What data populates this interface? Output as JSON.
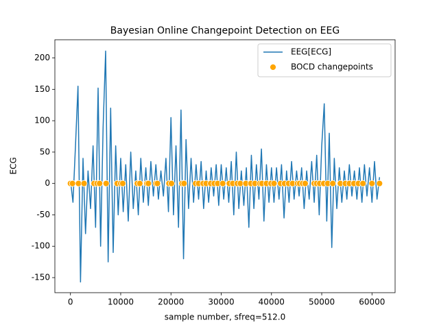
{
  "chart_data": {
    "type": "line",
    "title": "Bayesian Online Changepoint Detection on EEG",
    "xlabel": "sample number, sfreq=512.0",
    "ylabel": "ECG",
    "xlim": [
      -3100,
      64600
    ],
    "ylim": [
      -174,
      229
    ],
    "xticks": [
      0,
      10000,
      20000,
      30000,
      40000,
      50000,
      60000
    ],
    "yticks": [
      -150,
      -100,
      -50,
      0,
      50,
      100,
      150,
      200
    ],
    "legend": "upper right",
    "series": [
      {
        "name": "EEG[ECG]",
        "type": "line",
        "color": "#1f77b4",
        "x": [
          0,
          500,
          1000,
          1500,
          2000,
          2500,
          3000,
          3500,
          4000,
          4500,
          5000,
          5500,
          6000,
          6500,
          7000,
          7500,
          8000,
          8500,
          9000,
          9500,
          10000,
          10500,
          11000,
          11500,
          12000,
          12500,
          13000,
          13500,
          14000,
          14500,
          15000,
          15500,
          16000,
          16500,
          17000,
          17500,
          18000,
          18500,
          19000,
          19500,
          20000,
          20500,
          21000,
          21500,
          22000,
          22500,
          23000,
          23500,
          24000,
          24500,
          25000,
          25500,
          26000,
          26500,
          27000,
          27500,
          28000,
          28500,
          29000,
          29500,
          30000,
          30500,
          31000,
          31500,
          32000,
          32500,
          33000,
          33500,
          34000,
          34500,
          35000,
          35500,
          36000,
          36500,
          37000,
          37500,
          38000,
          38500,
          39000,
          39500,
          40000,
          40500,
          41000,
          41500,
          42000,
          42500,
          43000,
          43500,
          44000,
          44500,
          45000,
          45500,
          46000,
          46500,
          47000,
          47500,
          48000,
          48500,
          49000,
          49500,
          50000,
          50500,
          51000,
          51500,
          52000,
          52500,
          53000,
          53500,
          54000,
          54500,
          55000,
          55500,
          56000,
          56500,
          57000,
          57500,
          58000,
          58500,
          59000,
          59500,
          60000,
          60500,
          61000,
          61500
        ],
        "values": [
          5,
          -30,
          60,
          155,
          -157,
          40,
          -80,
          20,
          -40,
          60,
          -70,
          152,
          -100,
          90,
          211,
          -125,
          120,
          -110,
          60,
          -50,
          40,
          -45,
          30,
          -60,
          50,
          -40,
          20,
          -50,
          40,
          -30,
          25,
          -35,
          35,
          -20,
          30,
          -25,
          20,
          -20,
          40,
          -45,
          105,
          -50,
          60,
          -70,
          117,
          -120,
          70,
          -40,
          40,
          -30,
          30,
          -25,
          35,
          -40,
          20,
          -30,
          25,
          -20,
          30,
          -35,
          30,
          -25,
          25,
          -30,
          35,
          -50,
          50,
          -40,
          20,
          -35,
          25,
          -70,
          45,
          -40,
          30,
          -25,
          55,
          -60,
          30,
          -30,
          25,
          -30,
          25,
          -25,
          30,
          -55,
          20,
          -30,
          35,
          -25,
          20,
          -20,
          25,
          -40,
          20,
          -25,
          35,
          -30,
          45,
          -50,
          60,
          127,
          -60,
          80,
          -102,
          40,
          -40,
          25,
          -30,
          20,
          -25,
          30,
          -20,
          20,
          -25,
          25,
          -30,
          30,
          -20,
          25,
          -30,
          35,
          -25,
          10
        ]
      },
      {
        "name": "BOCD changepoints",
        "type": "scatter",
        "color": "#ffa500",
        "x": [
          0,
          400,
          1600,
          2700,
          4700,
          5300,
          5800,
          7100,
          9300,
          10000,
          10400,
          13300,
          13800,
          15200,
          15500,
          17000,
          17300,
          19600,
          20100,
          22200,
          22600,
          24900,
          25500,
          26400,
          27000,
          27900,
          28600,
          29300,
          30300,
          31600,
          32300,
          33200,
          33800,
          34900,
          35900,
          36700,
          37700,
          38100,
          39000,
          39900,
          40500,
          41800,
          42600,
          43400,
          44200,
          45200,
          45600,
          46200,
          46700,
          48500,
          49000,
          49600,
          50400,
          51200,
          52200,
          53700,
          54700,
          55500,
          56400,
          57300,
          58200,
          60000,
          61500
        ],
        "values": [
          0,
          0,
          0,
          0,
          0,
          0,
          0,
          0,
          0,
          0,
          0,
          0,
          0,
          0,
          0,
          0,
          0,
          0,
          0,
          0,
          0,
          0,
          0,
          0,
          0,
          0,
          0,
          0,
          0,
          0,
          0,
          0,
          0,
          0,
          0,
          0,
          0,
          0,
          0,
          0,
          0,
          0,
          0,
          0,
          0,
          0,
          0,
          0,
          0,
          0,
          0,
          0,
          0,
          0,
          0,
          0,
          0,
          0,
          0,
          0,
          0,
          0,
          0
        ]
      }
    ]
  }
}
